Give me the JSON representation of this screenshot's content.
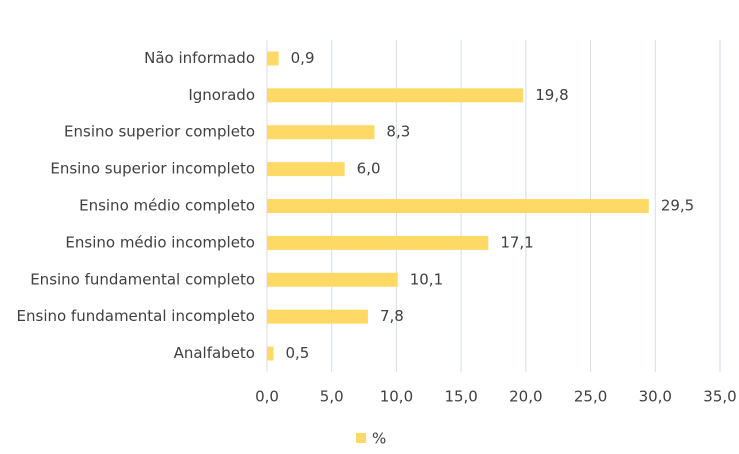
{
  "chart_data": {
    "type": "bar",
    "orientation": "horizontal",
    "categories": [
      "Não informado",
      "Ignorado",
      "Ensino superior completo",
      "Ensino superior incompleto",
      "Ensino médio completo",
      "Ensino médio incompleto",
      "Ensino fundamental completo",
      "Ensino fundamental incompleto",
      "Analfabeto"
    ],
    "series": [
      {
        "name": "%",
        "color": "#ffd966",
        "values": [
          0.9,
          19.8,
          8.3,
          6.0,
          29.5,
          17.1,
          10.1,
          7.8,
          0.5
        ],
        "value_labels": [
          "0,9",
          "19,8",
          "8,3",
          "6,0",
          "29,5",
          "17,1",
          "10,1",
          "7,8",
          "0,5"
        ]
      }
    ],
    "xlim": [
      0,
      35
    ],
    "xticks": [
      {
        "value": 0,
        "label": "0,0"
      },
      {
        "value": 5,
        "label": "5,0"
      },
      {
        "value": 10,
        "label": "10,0"
      },
      {
        "value": 15,
        "label": "15,0"
      },
      {
        "value": 20,
        "label": "20,0"
      },
      {
        "value": 25,
        "label": "25,0"
      },
      {
        "value": 30,
        "label": "30,0"
      },
      {
        "value": 35,
        "label": "35,0"
      }
    ],
    "grid": true,
    "legend": "bottom"
  }
}
